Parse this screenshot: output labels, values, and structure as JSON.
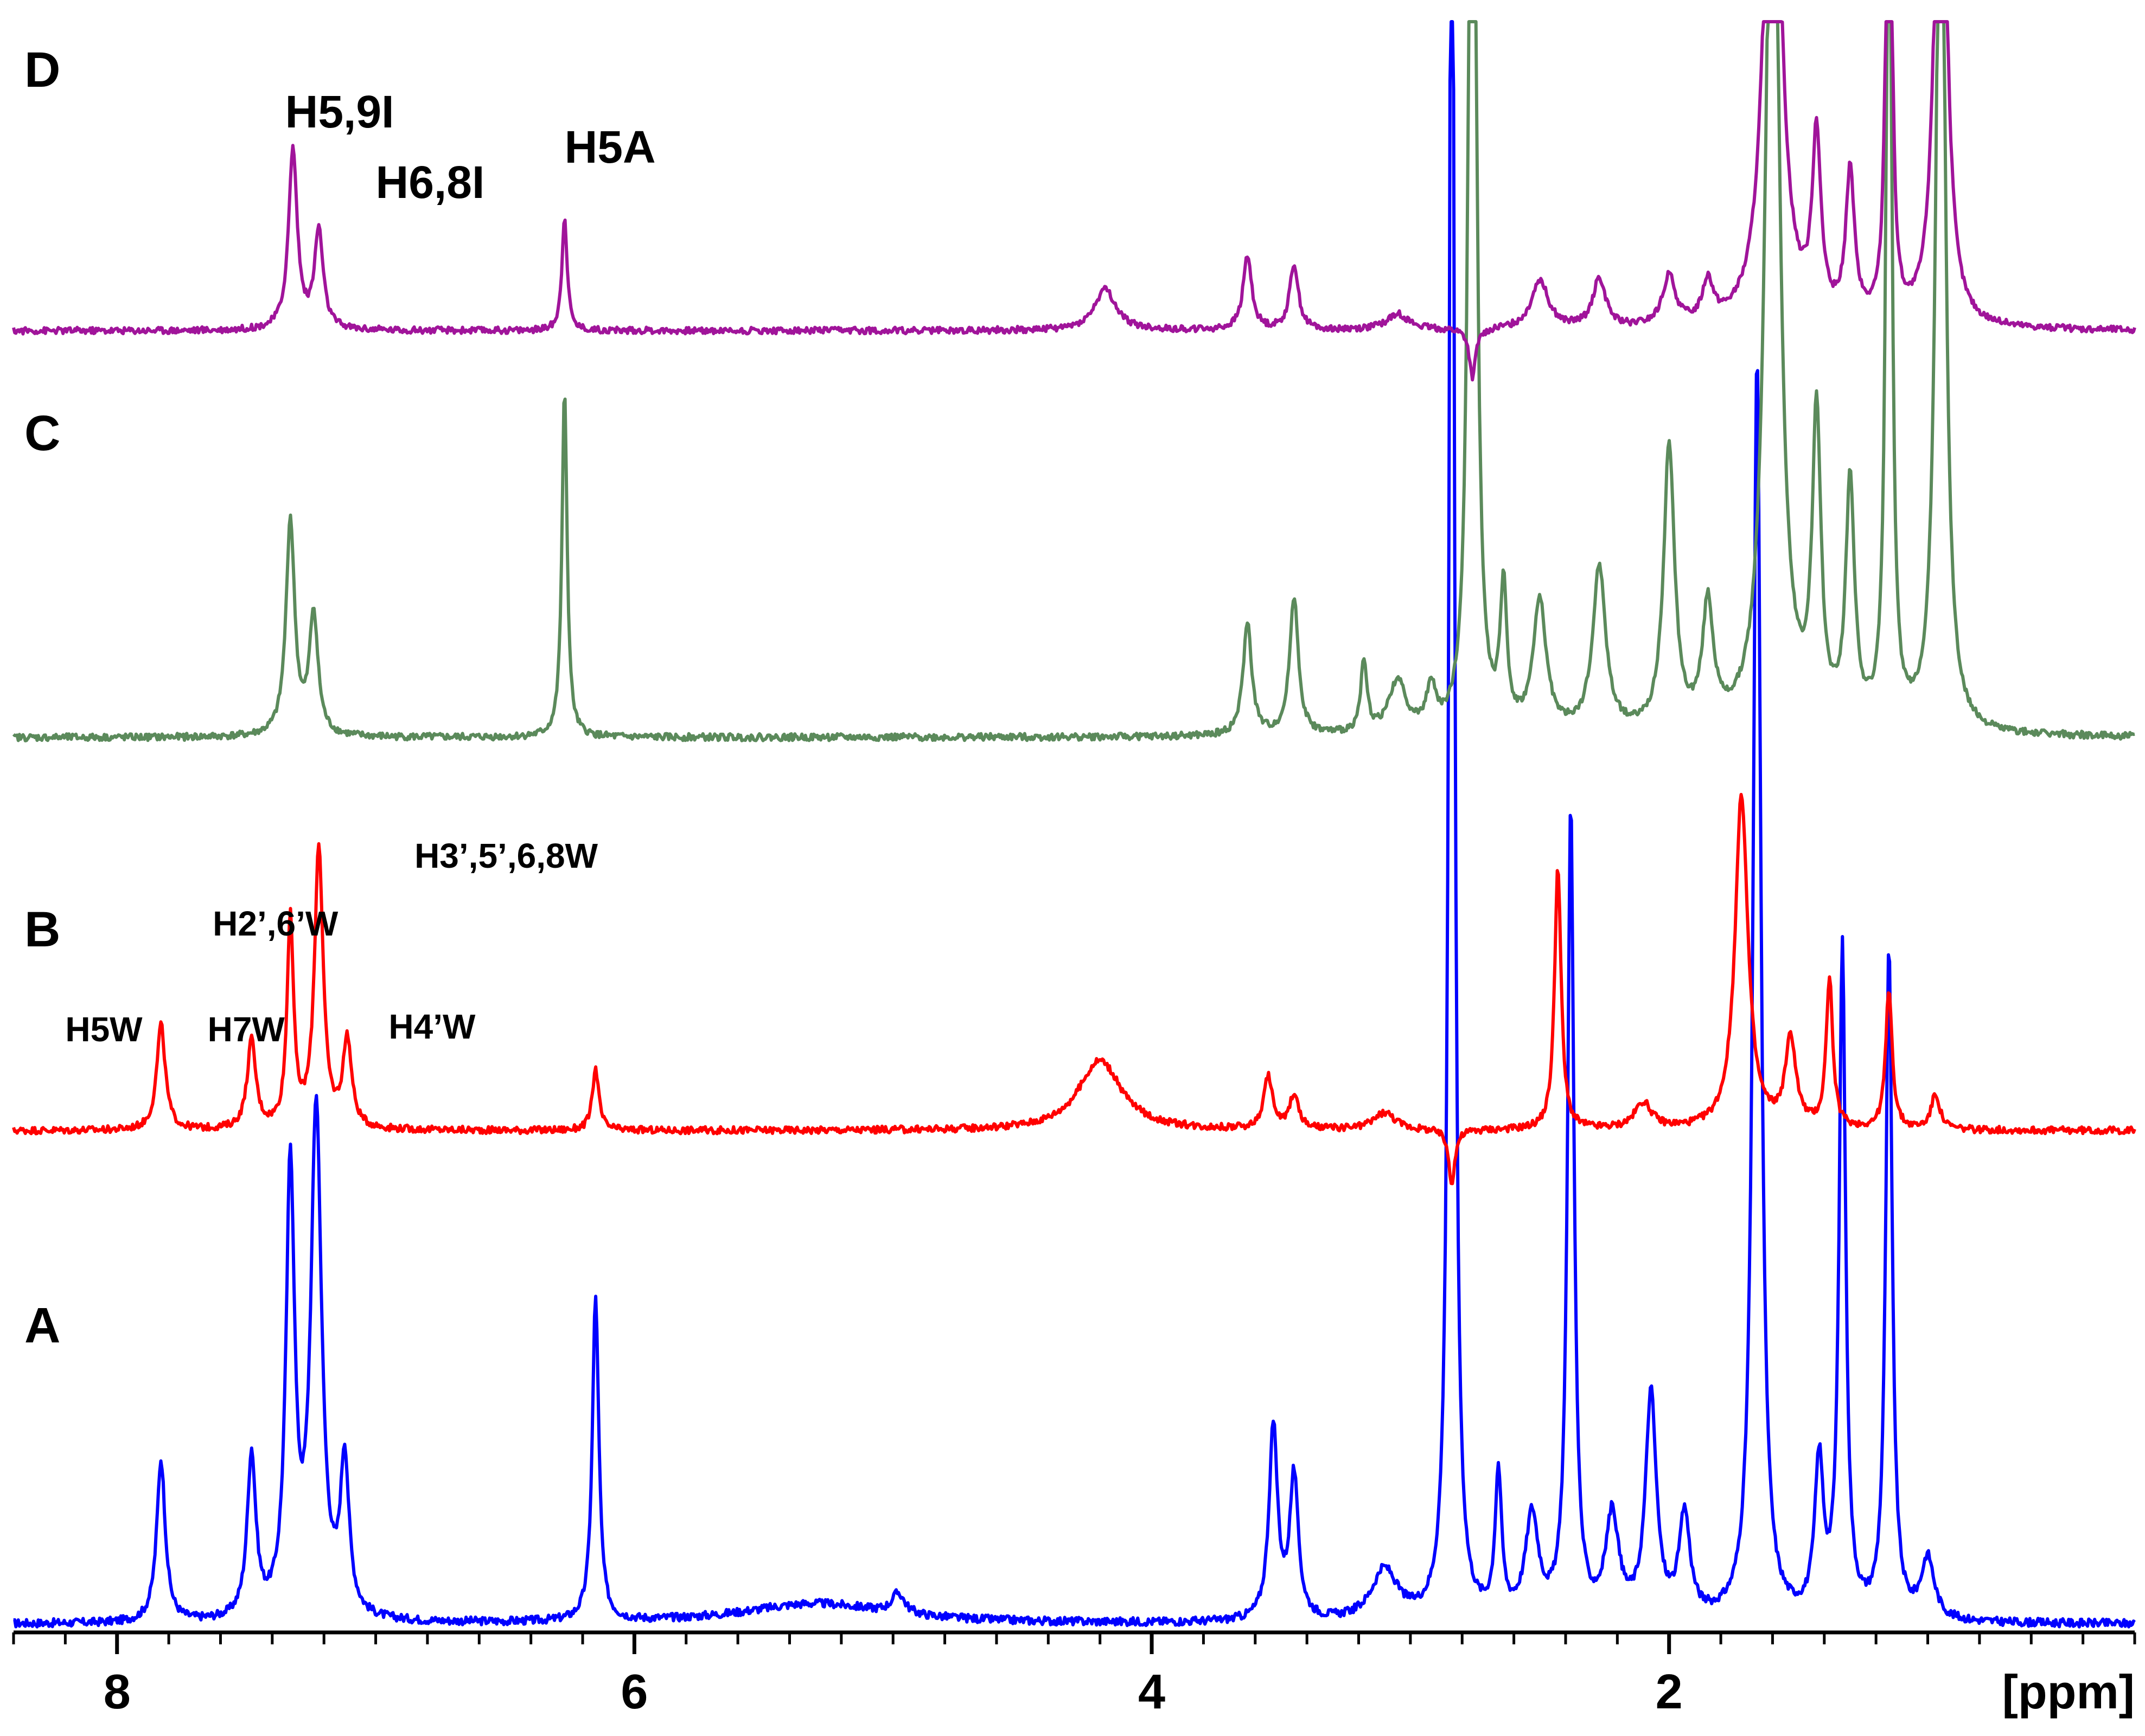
{
  "chart_data": {
    "type": "line",
    "title": "",
    "xlabel": "[ppm]",
    "x_axis": {
      "range_ppm": [
        8.4,
        0.2
      ],
      "reversed": true,
      "major_ticks": [
        8,
        6,
        4,
        2
      ],
      "major_tick_labels": [
        "8",
        "6",
        "4",
        "2"
      ],
      "minor_tick_step": 0.2
    },
    "grid": false,
    "legend": "none",
    "series": [
      {
        "panel": "A",
        "color": "#0000ff",
        "baseline": 0,
        "peaks": [
          {
            "ppm": 7.83,
            "height": 0.16,
            "width": 0.02
          },
          {
            "ppm": 7.48,
            "height": 0.16,
            "width": 0.02
          },
          {
            "ppm": 7.33,
            "height": 0.44,
            "width": 0.02
          },
          {
            "ppm": 7.23,
            "height": 0.5,
            "width": 0.025
          },
          {
            "ppm": 7.12,
            "height": 0.15,
            "width": 0.02
          },
          {
            "ppm": 6.15,
            "height": 0.32,
            "width": 0.015
          },
          {
            "ppm": 5.3,
            "height": 0.02,
            "width": 0.35
          },
          {
            "ppm": 4.98,
            "height": 0.02,
            "width": 0.03
          },
          {
            "ppm": 3.53,
            "height": 0.19,
            "width": 0.02
          },
          {
            "ppm": 3.45,
            "height": 0.14,
            "width": 0.02
          },
          {
            "ppm": 3.1,
            "height": 0.05,
            "width": 0.06
          },
          {
            "ppm": 2.84,
            "height": 2.0,
            "width": 0.012
          },
          {
            "ppm": 2.66,
            "height": 0.14,
            "width": 0.015
          },
          {
            "ppm": 2.53,
            "height": 0.1,
            "width": 0.03
          },
          {
            "ppm": 2.38,
            "height": 0.8,
            "width": 0.015
          },
          {
            "ppm": 2.22,
            "height": 0.1,
            "width": 0.03
          },
          {
            "ppm": 2.07,
            "height": 0.22,
            "width": 0.025
          },
          {
            "ppm": 1.94,
            "height": 0.1,
            "width": 0.025
          },
          {
            "ppm": 1.66,
            "height": 1.25,
            "width": 0.018
          },
          {
            "ppm": 1.42,
            "height": 0.15,
            "width": 0.02
          },
          {
            "ppm": 1.33,
            "height": 0.66,
            "width": 0.015
          },
          {
            "ppm": 1.15,
            "height": 0.66,
            "width": 0.015
          },
          {
            "ppm": 1.0,
            "height": 0.06,
            "width": 0.03
          }
        ]
      },
      {
        "panel": "B",
        "color": "#ff0000",
        "baseline": 0,
        "peaks": [
          {
            "ppm": 7.83,
            "height": 0.12,
            "width": 0.02
          },
          {
            "ppm": 7.48,
            "height": 0.1,
            "width": 0.02
          },
          {
            "ppm": 7.33,
            "height": 0.24,
            "width": 0.015
          },
          {
            "ppm": 7.22,
            "height": 0.32,
            "width": 0.02
          },
          {
            "ppm": 7.11,
            "height": 0.1,
            "width": 0.02
          },
          {
            "ppm": 6.15,
            "height": 0.07,
            "width": 0.015
          },
          {
            "ppm": 4.2,
            "height": 0.08,
            "width": 0.1
          },
          {
            "ppm": 3.55,
            "height": 0.06,
            "width": 0.02
          },
          {
            "ppm": 3.45,
            "height": 0.04,
            "width": 0.02
          },
          {
            "ppm": 3.1,
            "height": 0.02,
            "width": 0.05
          },
          {
            "ppm": 2.84,
            "height": -0.06,
            "width": 0.015
          },
          {
            "ppm": 2.43,
            "height": 0.3,
            "width": 0.015
          },
          {
            "ppm": 2.1,
            "height": 0.03,
            "width": 0.04
          },
          {
            "ppm": 1.72,
            "height": 0.38,
            "width": 0.03
          },
          {
            "ppm": 1.53,
            "height": 0.1,
            "width": 0.025
          },
          {
            "ppm": 1.38,
            "height": 0.17,
            "width": 0.015
          },
          {
            "ppm": 1.15,
            "height": 0.16,
            "width": 0.015
          },
          {
            "ppm": 0.97,
            "height": 0.04,
            "width": 0.02
          }
        ]
      },
      {
        "panel": "C",
        "color": "#5b8a5b",
        "baseline": 0,
        "peaks": [
          {
            "ppm": 7.33,
            "height": 0.25,
            "width": 0.02
          },
          {
            "ppm": 7.24,
            "height": 0.14,
            "width": 0.02
          },
          {
            "ppm": 6.27,
            "height": 0.4,
            "width": 0.012
          },
          {
            "ppm": 3.63,
            "height": 0.13,
            "width": 0.02
          },
          {
            "ppm": 3.45,
            "height": 0.16,
            "width": 0.02
          },
          {
            "ppm": 3.18,
            "height": 0.08,
            "width": 0.015
          },
          {
            "ppm": 3.05,
            "height": 0.06,
            "width": 0.04
          },
          {
            "ppm": 2.92,
            "height": 0.05,
            "width": 0.02
          },
          {
            "ppm": 2.76,
            "height": 1.6,
            "width": 0.015
          },
          {
            "ppm": 2.64,
            "height": 0.16,
            "width": 0.015
          },
          {
            "ppm": 2.5,
            "height": 0.15,
            "width": 0.03
          },
          {
            "ppm": 2.27,
            "height": 0.19,
            "width": 0.03
          },
          {
            "ppm": 2.0,
            "height": 0.33,
            "width": 0.025
          },
          {
            "ppm": 1.85,
            "height": 0.14,
            "width": 0.025
          },
          {
            "ppm": 1.6,
            "height": 1.2,
            "width": 0.03
          },
          {
            "ppm": 1.43,
            "height": 0.35,
            "width": 0.02
          },
          {
            "ppm": 1.3,
            "height": 0.28,
            "width": 0.02
          },
          {
            "ppm": 1.15,
            "height": 1.2,
            "width": 0.012
          },
          {
            "ppm": 0.95,
            "height": 1.2,
            "width": 0.02
          }
        ]
      },
      {
        "panel": "D",
        "color": "#a0149a",
        "baseline": 0,
        "peaks": [
          {
            "ppm": 7.32,
            "height": 0.22,
            "width": 0.02
          },
          {
            "ppm": 7.22,
            "height": 0.12,
            "width": 0.02
          },
          {
            "ppm": 6.27,
            "height": 0.14,
            "width": 0.012
          },
          {
            "ppm": 4.18,
            "height": 0.05,
            "width": 0.05
          },
          {
            "ppm": 3.63,
            "height": 0.09,
            "width": 0.02
          },
          {
            "ppm": 3.45,
            "height": 0.08,
            "width": 0.02
          },
          {
            "ppm": 3.05,
            "height": 0.02,
            "width": 0.05
          },
          {
            "ppm": 2.76,
            "height": -0.06,
            "width": 0.015
          },
          {
            "ppm": 2.5,
            "height": 0.06,
            "width": 0.04
          },
          {
            "ppm": 2.27,
            "height": 0.06,
            "width": 0.03
          },
          {
            "ppm": 2.0,
            "height": 0.06,
            "width": 0.03
          },
          {
            "ppm": 1.85,
            "height": 0.05,
            "width": 0.025
          },
          {
            "ppm": 1.6,
            "height": 0.8,
            "width": 0.035
          },
          {
            "ppm": 1.43,
            "height": 0.22,
            "width": 0.02
          },
          {
            "ppm": 1.3,
            "height": 0.18,
            "width": 0.02
          },
          {
            "ppm": 1.15,
            "height": 0.8,
            "width": 0.012
          },
          {
            "ppm": 0.95,
            "height": 0.8,
            "width": 0.025
          }
        ]
      }
    ],
    "panel_labels": [
      "A",
      "B",
      "C",
      "D"
    ],
    "annotations": [
      {
        "panel": "D",
        "text": "H5,9I",
        "ppm": 7.35,
        "size": "large"
      },
      {
        "panel": "D",
        "text": "H6,8I",
        "ppm": 7.0,
        "size": "large"
      },
      {
        "panel": "D",
        "text": "H5A",
        "ppm": 6.27,
        "size": "large"
      },
      {
        "panel": "B",
        "text": "H5W",
        "ppm": 8.2,
        "size": "small"
      },
      {
        "panel": "B",
        "text": "H7W",
        "ppm": 7.65,
        "size": "small"
      },
      {
        "panel": "B",
        "text": "H2’,6’W",
        "ppm": 7.63,
        "size": "small"
      },
      {
        "panel": "B",
        "text": "H3’,5’,6,8W",
        "ppm": 6.85,
        "size": "small"
      },
      {
        "panel": "B",
        "text": "H4’W",
        "ppm": 6.95,
        "size": "small"
      }
    ]
  }
}
